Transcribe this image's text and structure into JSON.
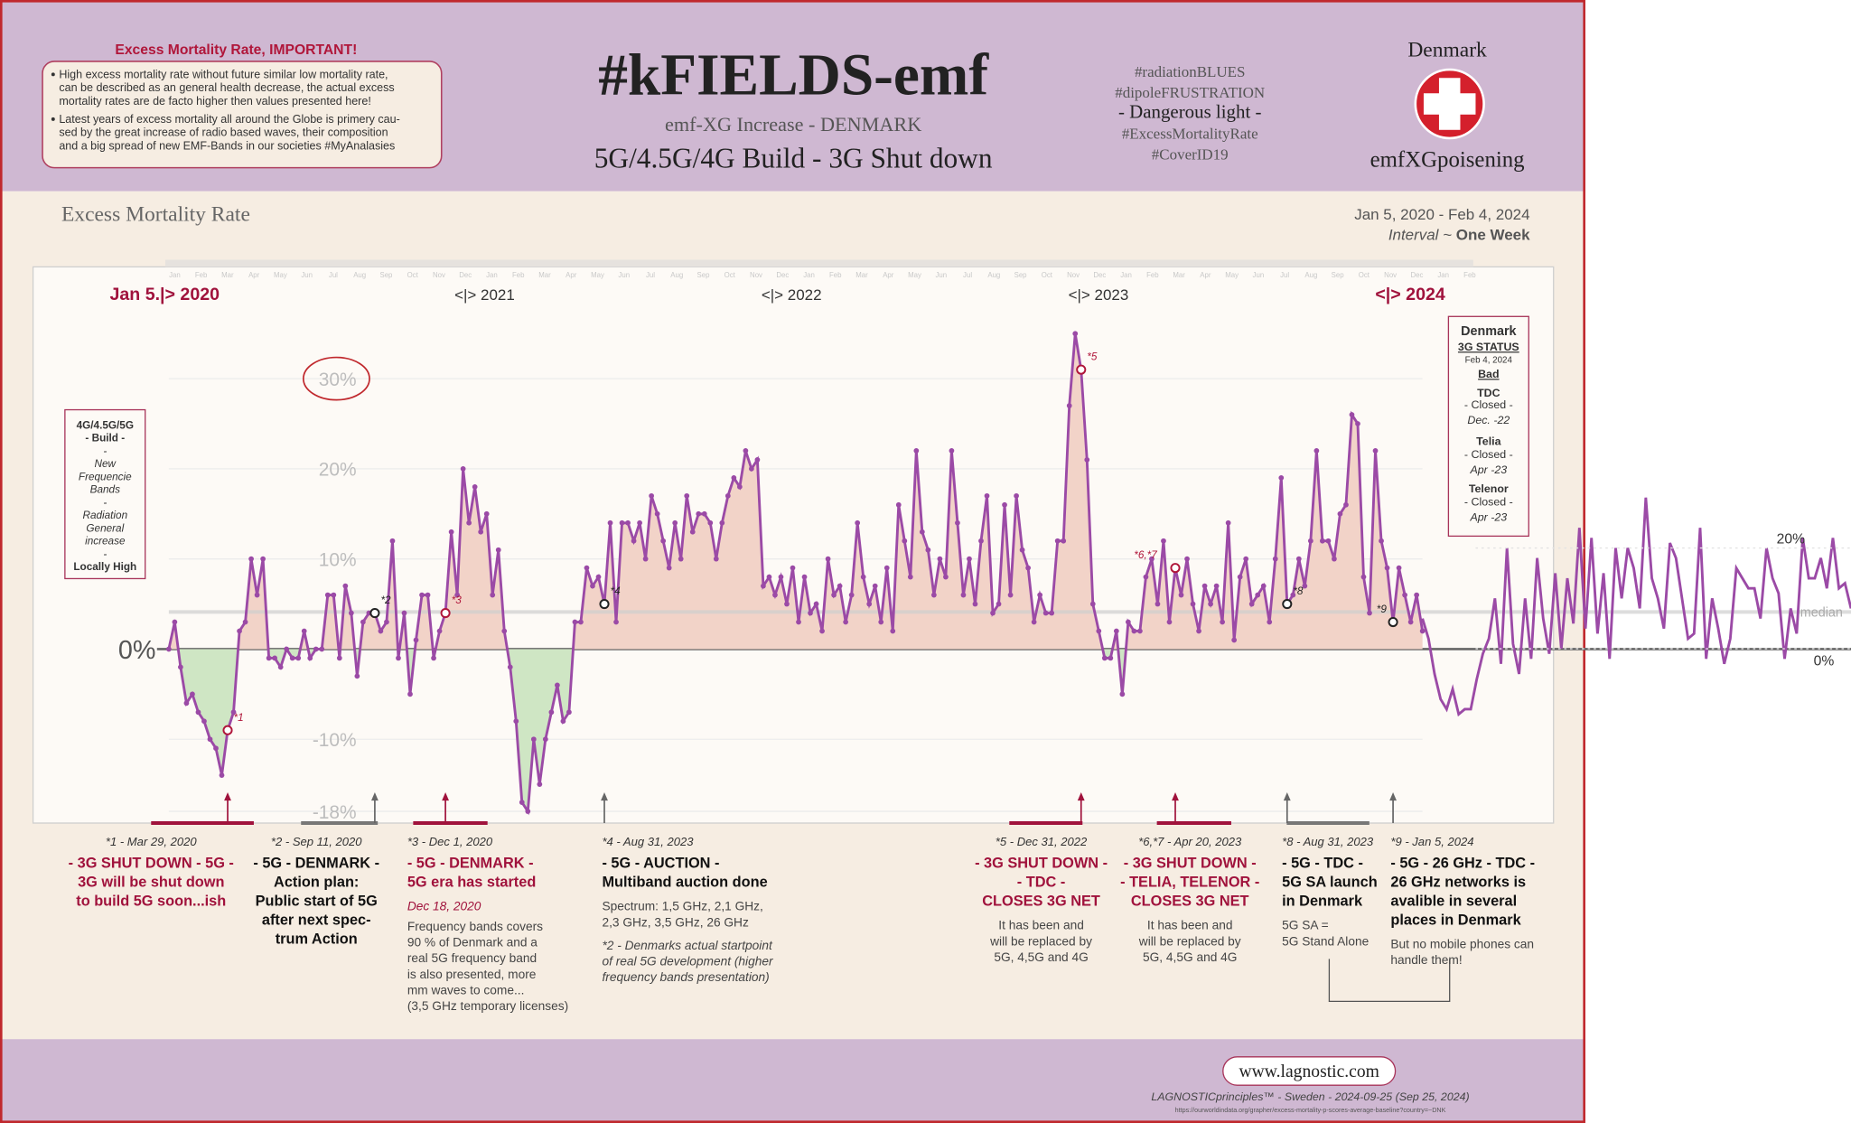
{
  "header": {
    "warning_title": "Excess Mortality Rate, IMPORTANT!",
    "warning_bullets": [
      [
        "High excess mortality rate without future similar low mortality rate,",
        "can be described as an general health decrease, the actual excess",
        "mortality rates are de facto higher then values presented here!"
      ],
      [
        "Latest years of excess mortality all around the Globe is primery cau-",
        "sed by the great increase of radio based waves, their composition",
        "and a big spread of new EMF-Bands in our societies #MyAnalasies"
      ]
    ],
    "title": "#kFIELDS-emf",
    "subtitle1": "emf-XG Increase - DENMARK",
    "subtitle2": "5G/4.5G/4G Build - 3G Shut down",
    "hashtags": [
      "#radiationBLUES",
      "#dipoleFRUSTRATION",
      "- Dangerous light -",
      "#ExcessMortalityRate",
      "#CoverID19"
    ],
    "country": "Denmark",
    "tagline": "emfXGpoisening"
  },
  "chart_data": [
    {
      "type": "line",
      "title": "Excess Mortality Rate",
      "date_range": "Jan 5, 2020 - Feb 4, 2024",
      "interval_label": "Interval ~",
      "interval": "One Week",
      "month_labels": [
        "Jan",
        "Feb",
        "Mar",
        "Apr",
        "May",
        "Jun",
        "Jul",
        "Aug",
        "Sep",
        "Oct",
        "Nov",
        "Dec",
        "Jan",
        "Feb",
        "Mar",
        "Apr",
        "May",
        "Jun",
        "Jul",
        "Aug",
        "Sep",
        "Oct",
        "Nov",
        "Dec",
        "Jan",
        "Feb",
        "Mar",
        "Apr",
        "May",
        "Jun",
        "Jul",
        "Aug",
        "Sep",
        "Oct",
        "Nov",
        "Dec",
        "Jan",
        "Feb",
        "Mar",
        "Apr",
        "May",
        "Jun",
        "Jul",
        "Aug",
        "Sep",
        "Oct",
        "Nov",
        "Dec",
        "Jan",
        "Feb"
      ],
      "year_labels": [
        "Jan 5.|> 2020",
        "<|> 2021",
        "<|> 2022",
        "<|> 2023",
        "<|> 2024"
      ],
      "series": [
        {
          "name": "Denmark",
          "color": "#9b4aa6",
          "values": [
            0,
            3,
            -2,
            -6,
            -5,
            -7,
            -8,
            -10,
            -11,
            -14,
            -9,
            -7,
            2,
            3,
            10,
            6,
            10,
            -1,
            -1,
            -2,
            0,
            -1,
            -1,
            2,
            -1,
            0,
            0,
            6,
            6,
            -1,
            7,
            4,
            -3,
            3,
            4,
            4,
            2,
            3,
            12,
            -1,
            4,
            -5,
            1,
            6,
            6,
            -1,
            2,
            4,
            13,
            6,
            20,
            14,
            18,
            13,
            15,
            6,
            11,
            2,
            -2,
            -8,
            -17,
            -18,
            -10,
            -15,
            -10,
            -7,
            -4,
            -8,
            -7,
            3,
            3,
            9,
            7,
            8,
            5,
            14,
            3,
            14,
            14,
            12,
            14,
            10,
            17,
            15,
            12,
            9,
            14,
            10,
            17,
            13,
            15,
            15,
            14,
            10,
            14,
            17,
            19,
            18,
            22,
            20,
            21,
            7,
            8,
            6,
            8,
            5,
            9,
            3,
            8,
            4,
            5,
            2,
            10,
            6,
            7,
            3,
            6,
            14,
            8,
            5,
            7,
            3,
            9,
            2,
            16,
            12,
            8,
            22,
            13,
            11,
            6,
            10,
            8,
            22,
            14,
            6,
            10,
            5,
            12,
            17,
            4,
            5,
            16,
            6,
            17,
            11,
            9,
            3,
            6,
            4,
            4,
            12,
            12,
            27,
            35,
            31,
            21,
            5,
            2,
            -1,
            -1,
            2,
            -5,
            3,
            2,
            2,
            8,
            10,
            5,
            12,
            3,
            9,
            6,
            10,
            5,
            2,
            7,
            5,
            7,
            3,
            14,
            1,
            8,
            10,
            5,
            6,
            7,
            3,
            10,
            19,
            5,
            6,
            10,
            7,
            12,
            22,
            12,
            12,
            10,
            15,
            16,
            26,
            25,
            8,
            4,
            22,
            12,
            9,
            3,
            9,
            6,
            3,
            6,
            2
          ]
        }
      ],
      "ylim": [
        -19.3,
        42.4
      ],
      "yticks": [
        {
          "value": -18,
          "label": "-18%"
        },
        {
          "value": -10,
          "label": "-10%"
        },
        {
          "value": 0,
          "label": "0%"
        },
        {
          "value": 10,
          "label": "10%"
        },
        {
          "value": 20,
          "label": "20%"
        },
        {
          "value": 30,
          "label": "30%"
        }
      ],
      "grid": true,
      "positive_fill": "#f2d3c8",
      "negative_fill": "#cfe6c4",
      "marker_labels": [
        "*1",
        "*2",
        "*3",
        "*4",
        "*5",
        "*6,*7",
        "*8",
        "*9"
      ]
    },
    {
      "type": "line",
      "series": [
        {
          "color": "#9b4aa6",
          "values": [
            6,
            2,
            -5,
            -10,
            -12,
            -8,
            -13,
            -12,
            -12,
            -6,
            -1,
            2,
            10,
            -3,
            20,
            1,
            -5,
            10,
            -2,
            18,
            6,
            -1,
            15,
            0,
            14,
            5,
            24,
            4,
            22,
            3,
            15,
            -2,
            20,
            10,
            20,
            16,
            8,
            30,
            14,
            10,
            4,
            21,
            18,
            10,
            2,
            3,
            24,
            -2,
            10,
            4,
            -3,
            2,
            16,
            14,
            12,
            12,
            6,
            20,
            14,
            11,
            -2,
            8,
            3,
            22,
            14,
            14,
            18,
            12,
            22,
            12,
            13,
            8
          ]
        }
      ],
      "ylim": [
        -34.6,
        75.8
      ],
      "yticks": [
        {
          "value": 0,
          "label": "0%"
        },
        {
          "value": 20,
          "label": "20%"
        }
      ],
      "median": 7.3,
      "median_label": "median"
    }
  ],
  "side_panel": [
    "4G/4.5G/5G",
    "- Build -",
    "-",
    "New",
    "Frequencie",
    "Bands",
    "-",
    "Radiation",
    "General",
    "increase",
    "-",
    "Locally High"
  ],
  "status_panel": [
    "Denmark",
    "3G STATUS",
    "Feb 4, 2024",
    "Bad",
    "TDC",
    "- Closed -",
    "Dec. -22",
    "Telia",
    "- Closed -",
    "Apr -23",
    "Telenor",
    "- Closed -",
    "Apr -23"
  ],
  "notes": [
    {
      "ref": "*1 - Mar 29, 2020",
      "heading": [
        "- 3G SHUT DOWN - 5G -",
        "3G will be  shut down",
        "to build 5G soon...ish"
      ],
      "body": []
    },
    {
      "ref": "*2 - Sep 11, 2020",
      "heading": [
        "- 5G - DENMARK -",
        "Action plan:",
        "Public start of 5G",
        "after next spec-",
        "trum Action"
      ],
      "body": []
    },
    {
      "ref": "*3 - Dec 1, 2020",
      "heading": [
        "- 5G - DENMARK -",
        "5G era has started"
      ],
      "date": "Dec 18, 2020",
      "body": [
        "Frequency bands covers",
        "90 % of Denmark and a",
        "real 5G frequency band",
        "is also presented, more",
        "mm waves to come...",
        "(3,5 GHz temporary licenses)"
      ]
    },
    {
      "ref": "*4 - Aug 31, 2023",
      "heading": [
        "- 5G - AUCTION -",
        "Multiband auction done"
      ],
      "body": [
        "Spectrum: 1,5 GHz, 2,1 GHz,",
        "2,3 GHz, 3,5 GHz, 26 GHz"
      ],
      "extra": [
        "*2 - Denmarks actual startpoint",
        "of real 5G development (higher",
        "frequency bands presentation)"
      ]
    },
    {
      "ref": "*5 - Dec 31, 2022",
      "heading": [
        "- 3G SHUT DOWN -",
        "- TDC -",
        "CLOSES 3G NET"
      ],
      "body": [
        "It has been and",
        "will be replaced by",
        "5G, 4,5G and 4G"
      ]
    },
    {
      "ref": "*6,*7 - Apr 20, 2023",
      "heading": [
        "- 3G SHUT DOWN -",
        "- TELIA, TELENOR -",
        "CLOSES 3G NET"
      ],
      "body": [
        "It has been and",
        "will be replaced by",
        "5G, 4,5G and 4G"
      ]
    },
    {
      "ref": "*8 - Aug 31, 2023",
      "heading": [
        "- 5G - TDC -",
        "5G SA launch",
        "in Denmark"
      ],
      "body": [
        "5G SA =",
        "5G Stand Alone"
      ]
    },
    {
      "ref": "*9 - Jan 5, 2024",
      "heading": [
        "- 5G - 26 GHz - TDC -",
        "26 GHz networks is",
        "avalible in several",
        "places in Denmark"
      ],
      "body": [
        "But no mobile phones can",
        "handle them!"
      ]
    }
  ],
  "footer": {
    "url": "www.lagnostic.com",
    "credit": "LAGNOSTICprinciples™ - Sweden - 2024-09-25 (Sep 25, 2024)",
    "source": "https://ourworldindata.org/grapher/excess-mortality-p-scores-average-baseline?country=~DNK"
  }
}
